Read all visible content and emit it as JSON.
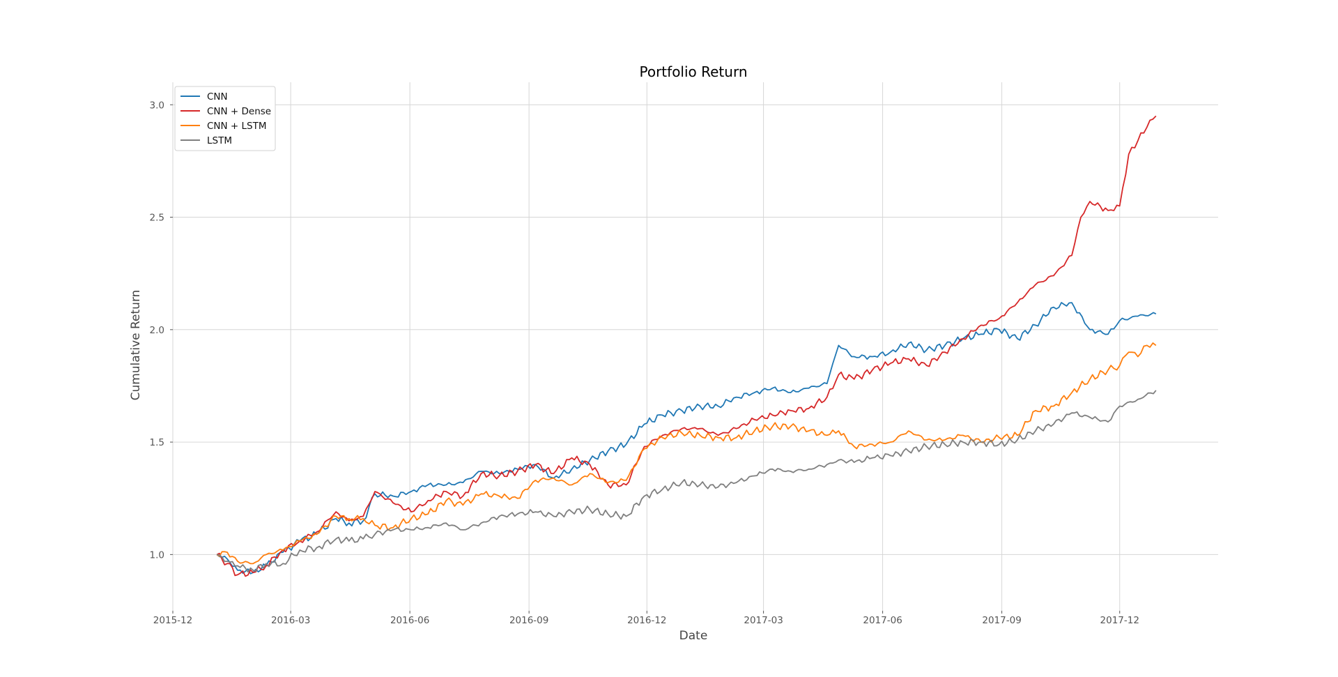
{
  "chart_data": {
    "type": "line",
    "title": "Portfolio Return",
    "xlabel": "Date",
    "ylabel": "Cumulative Return",
    "x_axis_type": "date",
    "xlim": [
      "2015-12-01",
      "2018-02-15"
    ],
    "ylim": [
      0.75,
      3.1
    ],
    "x_ticks": [
      "2015-12",
      "2016-03",
      "2016-06",
      "2016-09",
      "2016-12",
      "2017-03",
      "2017-06",
      "2017-09",
      "2017-12"
    ],
    "y_ticks": [
      "1.0",
      "1.5",
      "2.0",
      "2.5",
      "3.0"
    ],
    "grid": true,
    "legend_position": "top-left",
    "series": [
      {
        "name": "CNN",
        "color": "#1f77b4",
        "points": [
          [
            "2016-01-04",
            1.0
          ],
          [
            "2016-01-12",
            0.98
          ],
          [
            "2016-01-20",
            0.93
          ],
          [
            "2016-02-01",
            0.92
          ],
          [
            "2016-02-11",
            0.95
          ],
          [
            "2016-02-24",
            1.01
          ],
          [
            "2016-03-08",
            1.06
          ],
          [
            "2016-03-21",
            1.09
          ],
          [
            "2016-04-05",
            1.16
          ],
          [
            "2016-04-15",
            1.14
          ],
          [
            "2016-04-26",
            1.15
          ],
          [
            "2016-05-05",
            1.27
          ],
          [
            "2016-05-19",
            1.26
          ],
          [
            "2016-06-02",
            1.28
          ],
          [
            "2016-06-15",
            1.31
          ],
          [
            "2016-06-29",
            1.31
          ],
          [
            "2016-07-12",
            1.32
          ],
          [
            "2016-07-26",
            1.37
          ],
          [
            "2016-08-09",
            1.36
          ],
          [
            "2016-08-23",
            1.38
          ],
          [
            "2016-09-06",
            1.4
          ],
          [
            "2016-09-20",
            1.34
          ],
          [
            "2016-10-04",
            1.38
          ],
          [
            "2016-10-18",
            1.42
          ],
          [
            "2016-11-01",
            1.46
          ],
          [
            "2016-11-15",
            1.49
          ],
          [
            "2016-11-29",
            1.58
          ],
          [
            "2016-12-13",
            1.62
          ],
          [
            "2016-12-28",
            1.64
          ],
          [
            "2017-01-11",
            1.66
          ],
          [
            "2017-01-25",
            1.66
          ],
          [
            "2017-02-08",
            1.7
          ],
          [
            "2017-02-22",
            1.72
          ],
          [
            "2017-03-08",
            1.74
          ],
          [
            "2017-03-22",
            1.72
          ],
          [
            "2017-04-05",
            1.74
          ],
          [
            "2017-04-19",
            1.76
          ],
          [
            "2017-04-28",
            1.93
          ],
          [
            "2017-05-10",
            1.88
          ],
          [
            "2017-05-24",
            1.88
          ],
          [
            "2017-06-07",
            1.9
          ],
          [
            "2017-06-21",
            1.94
          ],
          [
            "2017-07-05",
            1.91
          ],
          [
            "2017-07-19",
            1.93
          ],
          [
            "2017-08-02",
            1.96
          ],
          [
            "2017-08-16",
            1.98
          ],
          [
            "2017-08-30",
            2.0
          ],
          [
            "2017-09-13",
            1.96
          ],
          [
            "2017-09-27",
            2.02
          ],
          [
            "2017-10-11",
            2.1
          ],
          [
            "2017-10-25",
            2.12
          ],
          [
            "2017-11-08",
            2.0
          ],
          [
            "2017-11-22",
            1.98
          ],
          [
            "2017-12-01",
            2.04
          ],
          [
            "2017-12-15",
            2.06
          ],
          [
            "2017-12-29",
            2.07
          ]
        ]
      },
      {
        "name": "CNN + Dense",
        "color": "#d62728",
        "points": [
          [
            "2016-01-04",
            1.0
          ],
          [
            "2016-01-12",
            0.96
          ],
          [
            "2016-01-20",
            0.91
          ],
          [
            "2016-02-01",
            0.92
          ],
          [
            "2016-02-11",
            0.95
          ],
          [
            "2016-02-24",
            1.02
          ],
          [
            "2016-03-08",
            1.06
          ],
          [
            "2016-03-21",
            1.1
          ],
          [
            "2016-04-05",
            1.19
          ],
          [
            "2016-04-15",
            1.15
          ],
          [
            "2016-04-26",
            1.17
          ],
          [
            "2016-05-05",
            1.28
          ],
          [
            "2016-05-19",
            1.23
          ],
          [
            "2016-06-02",
            1.19
          ],
          [
            "2016-06-15",
            1.24
          ],
          [
            "2016-06-29",
            1.28
          ],
          [
            "2016-07-12",
            1.26
          ],
          [
            "2016-07-26",
            1.36
          ],
          [
            "2016-08-09",
            1.35
          ],
          [
            "2016-08-23",
            1.37
          ],
          [
            "2016-09-06",
            1.4
          ],
          [
            "2016-09-20",
            1.36
          ],
          [
            "2016-10-04",
            1.43
          ],
          [
            "2016-10-18",
            1.4
          ],
          [
            "2016-11-01",
            1.31
          ],
          [
            "2016-11-15",
            1.31
          ],
          [
            "2016-11-29",
            1.48
          ],
          [
            "2016-12-13",
            1.53
          ],
          [
            "2016-12-28",
            1.56
          ],
          [
            "2017-01-11",
            1.56
          ],
          [
            "2017-01-25",
            1.53
          ],
          [
            "2017-02-08",
            1.56
          ],
          [
            "2017-02-22",
            1.6
          ],
          [
            "2017-03-08",
            1.62
          ],
          [
            "2017-03-22",
            1.64
          ],
          [
            "2017-04-05",
            1.65
          ],
          [
            "2017-04-19",
            1.7
          ],
          [
            "2017-04-28",
            1.8
          ],
          [
            "2017-05-10",
            1.78
          ],
          [
            "2017-05-24",
            1.82
          ],
          [
            "2017-06-07",
            1.85
          ],
          [
            "2017-06-21",
            1.87
          ],
          [
            "2017-07-05",
            1.84
          ],
          [
            "2017-07-19",
            1.9
          ],
          [
            "2017-08-02",
            1.96
          ],
          [
            "2017-08-16",
            2.02
          ],
          [
            "2017-08-30",
            2.05
          ],
          [
            "2017-09-13",
            2.12
          ],
          [
            "2017-09-27",
            2.2
          ],
          [
            "2017-10-11",
            2.24
          ],
          [
            "2017-10-25",
            2.33
          ],
          [
            "2017-11-01",
            2.5
          ],
          [
            "2017-11-08",
            2.57
          ],
          [
            "2017-11-22",
            2.53
          ],
          [
            "2017-12-01",
            2.55
          ],
          [
            "2017-12-08",
            2.78
          ],
          [
            "2017-12-15",
            2.84
          ],
          [
            "2017-12-22",
            2.9
          ],
          [
            "2017-12-29",
            2.95
          ]
        ]
      },
      {
        "name": "CNN + LSTM",
        "color": "#ff7f0e",
        "points": [
          [
            "2016-01-04",
            1.0
          ],
          [
            "2016-01-12",
            1.01
          ],
          [
            "2016-01-20",
            0.97
          ],
          [
            "2016-02-01",
            0.96
          ],
          [
            "2016-02-11",
            1.0
          ],
          [
            "2016-02-24",
            1.02
          ],
          [
            "2016-03-08",
            1.06
          ],
          [
            "2016-03-21",
            1.09
          ],
          [
            "2016-04-05",
            1.17
          ],
          [
            "2016-04-15",
            1.16
          ],
          [
            "2016-04-26",
            1.16
          ],
          [
            "2016-05-05",
            1.13
          ],
          [
            "2016-05-19",
            1.12
          ],
          [
            "2016-06-02",
            1.16
          ],
          [
            "2016-06-15",
            1.18
          ],
          [
            "2016-06-29",
            1.24
          ],
          [
            "2016-07-12",
            1.22
          ],
          [
            "2016-07-26",
            1.27
          ],
          [
            "2016-08-09",
            1.26
          ],
          [
            "2016-08-23",
            1.25
          ],
          [
            "2016-09-06",
            1.33
          ],
          [
            "2016-09-20",
            1.34
          ],
          [
            "2016-10-04",
            1.31
          ],
          [
            "2016-10-18",
            1.36
          ],
          [
            "2016-11-01",
            1.32
          ],
          [
            "2016-11-15",
            1.33
          ],
          [
            "2016-11-29",
            1.47
          ],
          [
            "2016-12-13",
            1.52
          ],
          [
            "2016-12-28",
            1.54
          ],
          [
            "2017-01-11",
            1.53
          ],
          [
            "2017-01-25",
            1.52
          ],
          [
            "2017-02-08",
            1.52
          ],
          [
            "2017-02-22",
            1.55
          ],
          [
            "2017-03-08",
            1.57
          ],
          [
            "2017-03-22",
            1.57
          ],
          [
            "2017-04-05",
            1.55
          ],
          [
            "2017-04-19",
            1.53
          ],
          [
            "2017-04-28",
            1.55
          ],
          [
            "2017-05-10",
            1.48
          ],
          [
            "2017-05-24",
            1.49
          ],
          [
            "2017-06-07",
            1.5
          ],
          [
            "2017-06-21",
            1.55
          ],
          [
            "2017-07-05",
            1.51
          ],
          [
            "2017-07-19",
            1.51
          ],
          [
            "2017-08-02",
            1.53
          ],
          [
            "2017-08-16",
            1.5
          ],
          [
            "2017-08-30",
            1.52
          ],
          [
            "2017-09-13",
            1.53
          ],
          [
            "2017-09-27",
            1.64
          ],
          [
            "2017-10-11",
            1.66
          ],
          [
            "2017-10-25",
            1.72
          ],
          [
            "2017-11-08",
            1.78
          ],
          [
            "2017-11-22",
            1.82
          ],
          [
            "2017-12-01",
            1.84
          ],
          [
            "2017-12-08",
            1.9
          ],
          [
            "2017-12-15",
            1.88
          ],
          [
            "2017-12-22",
            1.93
          ],
          [
            "2017-12-29",
            1.93
          ]
        ]
      },
      {
        "name": "LSTM",
        "color": "#7f7f7f",
        "points": [
          [
            "2016-01-04",
            1.0
          ],
          [
            "2016-01-12",
            0.97
          ],
          [
            "2016-01-20",
            0.95
          ],
          [
            "2016-02-01",
            0.93
          ],
          [
            "2016-02-11",
            0.96
          ],
          [
            "2016-02-24",
            0.96
          ],
          [
            "2016-03-08",
            1.02
          ],
          [
            "2016-03-21",
            1.03
          ],
          [
            "2016-04-05",
            1.07
          ],
          [
            "2016-04-15",
            1.06
          ],
          [
            "2016-04-26",
            1.07
          ],
          [
            "2016-05-05",
            1.09
          ],
          [
            "2016-05-19",
            1.11
          ],
          [
            "2016-06-02",
            1.11
          ],
          [
            "2016-06-15",
            1.12
          ],
          [
            "2016-06-29",
            1.14
          ],
          [
            "2016-07-12",
            1.11
          ],
          [
            "2016-07-26",
            1.14
          ],
          [
            "2016-08-09",
            1.17
          ],
          [
            "2016-08-23",
            1.18
          ],
          [
            "2016-09-06",
            1.19
          ],
          [
            "2016-09-20",
            1.17
          ],
          [
            "2016-10-04",
            1.19
          ],
          [
            "2016-10-18",
            1.2
          ],
          [
            "2016-11-01",
            1.18
          ],
          [
            "2016-11-15",
            1.17
          ],
          [
            "2016-11-29",
            1.26
          ],
          [
            "2016-12-13",
            1.29
          ],
          [
            "2016-12-28",
            1.32
          ],
          [
            "2017-01-11",
            1.31
          ],
          [
            "2017-01-25",
            1.3
          ],
          [
            "2017-02-08",
            1.32
          ],
          [
            "2017-02-22",
            1.35
          ],
          [
            "2017-03-08",
            1.38
          ],
          [
            "2017-03-22",
            1.37
          ],
          [
            "2017-04-05",
            1.38
          ],
          [
            "2017-04-19",
            1.4
          ],
          [
            "2017-04-28",
            1.42
          ],
          [
            "2017-05-10",
            1.41
          ],
          [
            "2017-05-24",
            1.43
          ],
          [
            "2017-06-07",
            1.44
          ],
          [
            "2017-06-21",
            1.46
          ],
          [
            "2017-07-05",
            1.48
          ],
          [
            "2017-07-19",
            1.49
          ],
          [
            "2017-08-02",
            1.5
          ],
          [
            "2017-08-16",
            1.5
          ],
          [
            "2017-08-30",
            1.49
          ],
          [
            "2017-09-13",
            1.51
          ],
          [
            "2017-09-27",
            1.55
          ],
          [
            "2017-10-11",
            1.58
          ],
          [
            "2017-10-25",
            1.63
          ],
          [
            "2017-11-08",
            1.61
          ],
          [
            "2017-11-22",
            1.59
          ],
          [
            "2017-12-01",
            1.66
          ],
          [
            "2017-12-15",
            1.69
          ],
          [
            "2017-12-29",
            1.73
          ]
        ]
      }
    ]
  }
}
